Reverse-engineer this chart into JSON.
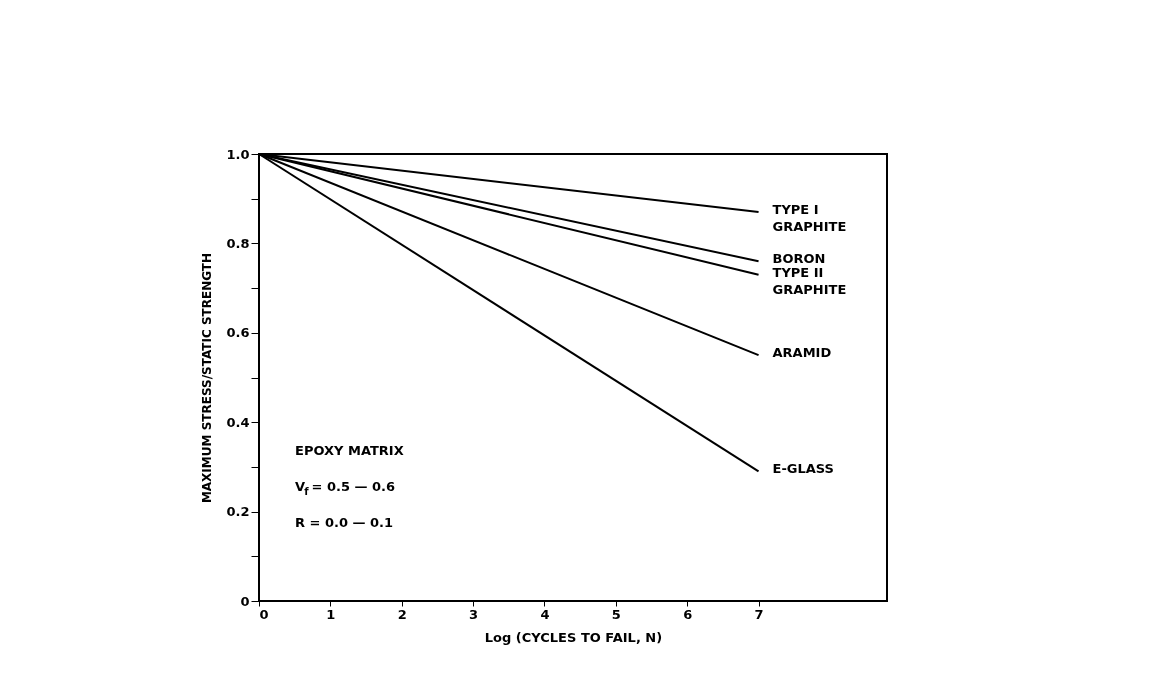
{
  "chart_data": {
    "type": "line",
    "xlabel": "Log (CYCLES TO FAIL, N)",
    "ylabel": "MAXIMUM STRESS/STATIC STRENGTH",
    "x": [
      0,
      7
    ],
    "series": [
      {
        "name": "TYPE I GRAPHITE",
        "color": "#000000",
        "values": [
          1.0,
          0.87
        ]
      },
      {
        "name": "BORON",
        "color": "#000000",
        "values": [
          1.0,
          0.76
        ]
      },
      {
        "name": "TYPE II GRAPHITE",
        "color": "#000000",
        "values": [
          1.0,
          0.73
        ]
      },
      {
        "name": "ARAMID",
        "color": "#000000",
        "values": [
          1.0,
          0.55
        ]
      },
      {
        "name": "E-GLASS",
        "color": "#000000",
        "values": [
          1.0,
          0.29
        ]
      }
    ],
    "xlim": [
      0,
      8.8
    ],
    "xticks": [
      0,
      1,
      2,
      3,
      4,
      5,
      6,
      7
    ],
    "ylim": [
      0,
      1.0
    ],
    "yticks": [
      0,
      {
        "value": 0.1,
        "label": null
      },
      0.2,
      {
        "value": 0.3,
        "label": null
      },
      0.4,
      {
        "value": 0.5,
        "label": null
      },
      0.6,
      {
        "value": 0.7,
        "label": null
      },
      0.8,
      {
        "value": 0.9,
        "label": null
      },
      {
        "value": 1.0,
        "label": "1.0"
      }
    ],
    "annotations": [
      "EPOXY MATRIX",
      "V$_{f}$ = 0.5 — 0.6",
      "R = 0.0 — 0.1"
    ],
    "grid": false,
    "legend": false,
    "marker": "none",
    "line_style": "solid"
  }
}
